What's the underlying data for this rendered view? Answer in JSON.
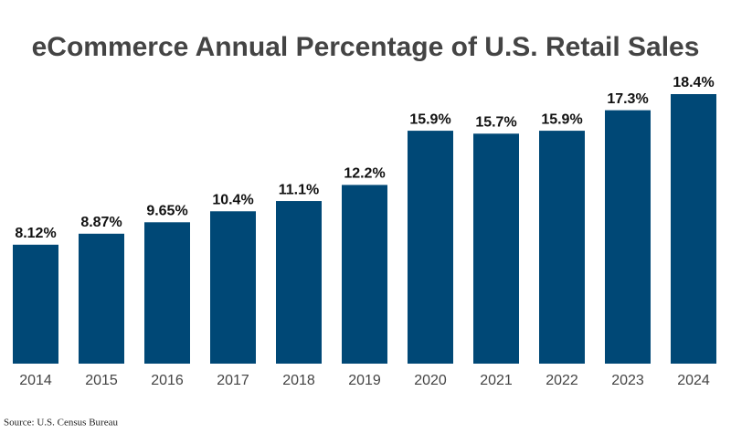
{
  "chart_data": {
    "type": "bar",
    "title": "eCommerce Annual Percentage of U.S. Retail Sales",
    "categories": [
      "2014",
      "2015",
      "2016",
      "2017",
      "2018",
      "2019",
      "2020",
      "2021",
      "2022",
      "2023",
      "2024"
    ],
    "values": [
      8.12,
      8.87,
      9.65,
      10.4,
      11.1,
      12.2,
      15.9,
      15.7,
      15.9,
      17.3,
      18.4
    ],
    "value_labels": [
      "8.12%",
      "8.87%",
      "9.65%",
      "10.4%",
      "11.1%",
      "12.2%",
      "15.9%",
      "15.7%",
      "15.9%",
      "17.3%",
      "18.4%"
    ],
    "color": "#004876",
    "source": "Source: U.S. Census Bureau"
  }
}
